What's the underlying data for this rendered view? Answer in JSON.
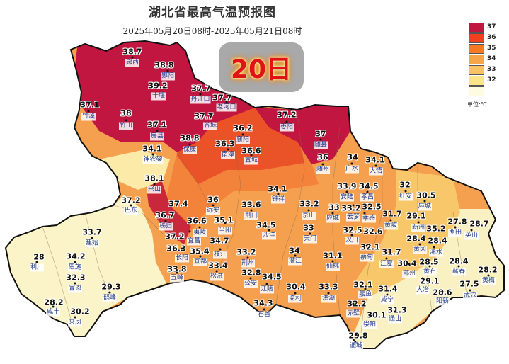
{
  "header": {
    "title": "湖北省最高气温预报图",
    "subtitle": "2025年05月20日08时-2025年05月21日08时",
    "day_badge": "20日"
  },
  "legend": {
    "unit": "单位:℃",
    "levels": [
      {
        "label": "37",
        "color": "#c0163f"
      },
      {
        "label": "36",
        "color": "#f0401e"
      },
      {
        "label": "35",
        "color": "#f57a22"
      },
      {
        "label": "34",
        "color": "#f6a54a"
      },
      {
        "label": "33",
        "color": "#f8c463"
      },
      {
        "label": "32",
        "color": "#fbe48a"
      },
      {
        "label": "",
        "color": "#fdfbe0"
      }
    ]
  },
  "stations": [
    {
      "name": "郧西",
      "value": "38.7"
    },
    {
      "name": "郧阳",
      "value": "38.8"
    },
    {
      "name": "十堰",
      "value": "39.2"
    },
    {
      "name": "丹江口",
      "value": "37.7"
    },
    {
      "name": "老河口",
      "value": "37.7"
    },
    {
      "name": "谷城",
      "value": "37.7"
    },
    {
      "name": "竹溪",
      "value": "37.1"
    },
    {
      "name": "竹山",
      "value": "38"
    },
    {
      "name": "房县",
      "value": "37.1"
    },
    {
      "name": "保康",
      "value": "38.8"
    },
    {
      "name": "神农架",
      "value": "34.1"
    },
    {
      "name": "襄阳",
      "value": "36.2"
    },
    {
      "name": "南漳",
      "value": "36.3"
    },
    {
      "name": "宜城",
      "value": "36.6"
    },
    {
      "name": "枣阳",
      "value": "37.2"
    },
    {
      "name": "随县",
      "value": "37"
    },
    {
      "name": "随州",
      "value": "36"
    },
    {
      "name": "广水",
      "value": "34"
    },
    {
      "name": "大悟",
      "value": "34.1"
    },
    {
      "name": "兴山",
      "value": "38.1"
    },
    {
      "name": "巴东",
      "value": "37.2"
    },
    {
      "name": "远安",
      "value": "36"
    },
    {
      "name": "当阳",
      "value": "35.1"
    },
    {
      "name": "秭归",
      "value": "36.7"
    },
    {
      "name": "",
      "value": "37.4"
    },
    {
      "name": "夷陵",
      "value": "36.6"
    },
    {
      "name": "宜昌",
      "value": "37.2"
    },
    {
      "name": "长阳",
      "value": "36.3"
    },
    {
      "name": "宜都",
      "value": "35.4"
    },
    {
      "name": "枝江",
      "value": "34.7"
    },
    {
      "name": "五峰",
      "value": "33.8"
    },
    {
      "name": "松滋",
      "value": "33.4"
    },
    {
      "name": "荆门",
      "value": "33.6"
    },
    {
      "name": "钟祥",
      "value": "34.1"
    },
    {
      "name": "沙洋",
      "value": "34.5"
    },
    {
      "name": "荆州",
      "value": "33.2"
    },
    {
      "name": "公安",
      "value": "32.8"
    },
    {
      "name": "江陵",
      "value": "34.5"
    },
    {
      "name": "石首",
      "value": "34.3"
    },
    {
      "name": "监利",
      "value": "30.4"
    },
    {
      "name": "潜江",
      "value": "34"
    },
    {
      "name": "仙桃",
      "value": "31.1"
    },
    {
      "name": "洪湖",
      "value": "33.3"
    },
    {
      "name": "京山",
      "value": "33.2"
    },
    {
      "name": "天门",
      "value": "33"
    },
    {
      "name": "安陆",
      "value": "33.9"
    },
    {
      "name": "孝昌",
      "value": "34.5"
    },
    {
      "name": "云梦",
      "value": "33.2"
    },
    {
      "name": "应城",
      "value": "33"
    },
    {
      "name": "孝感",
      "value": "32.5"
    },
    {
      "name": "汉川",
      "value": "32.5"
    },
    {
      "name": "",
      "value": "32.6"
    },
    {
      "name": "蔡甸",
      "value": "32.1"
    },
    {
      "name": "黄陂",
      "value": "31.7"
    },
    {
      "name": "红安",
      "value": "32"
    },
    {
      "name": "麻城",
      "value": "30.5"
    },
    {
      "name": "新洲",
      "value": "29.1"
    },
    {
      "name": "",
      "value": "35.2"
    },
    {
      "name": "黄冈",
      "value": "28.4"
    },
    {
      "name": "浠水",
      "value": "28.4"
    },
    {
      "name": "罗田",
      "value": "27.8"
    },
    {
      "name": "英山",
      "value": "28.7"
    },
    {
      "name": "江夏",
      "value": "31.7"
    },
    {
      "name": "鄂州",
      "value": "30.4"
    },
    {
      "name": "黄石",
      "value": "28.5"
    },
    {
      "name": "大冶",
      "value": "29.1"
    },
    {
      "name": "蕲春",
      "value": "28.4"
    },
    {
      "name": "黄梅",
      "value": "28.2"
    },
    {
      "name": "武穴",
      "value": "27.5"
    },
    {
      "name": "阳新",
      "value": "28.6"
    },
    {
      "name": "嘉鱼",
      "value": "32.1"
    },
    {
      "name": "赤壁",
      "value": "32.2"
    },
    {
      "name": "崇阳",
      "value": "30.1"
    },
    {
      "name": "咸宁",
      "value": "31.4"
    },
    {
      "name": "通山",
      "value": "31.3"
    },
    {
      "name": "通城",
      "value": "29.8"
    },
    {
      "name": "建始",
      "value": "33.7"
    },
    {
      "name": "利川",
      "value": "28"
    },
    {
      "name": "恩施",
      "value": "34.2"
    },
    {
      "name": "宣恩",
      "value": "32.3"
    },
    {
      "name": "鹤峰",
      "value": "29.3"
    },
    {
      "name": "咸丰",
      "value": "28.2"
    },
    {
      "name": "来凤",
      "value": "30.2"
    }
  ]
}
